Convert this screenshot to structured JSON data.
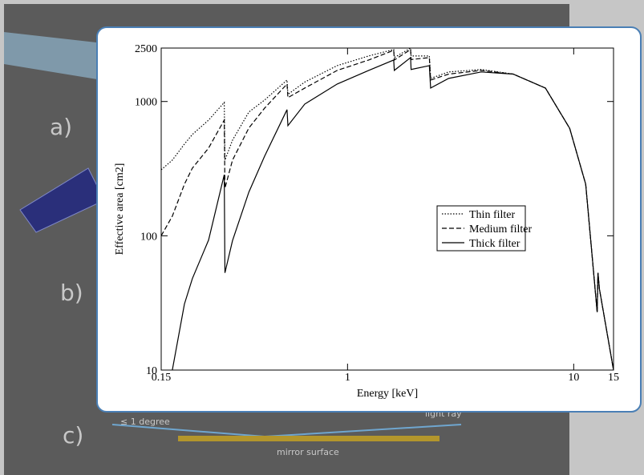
{
  "slide": {
    "panel_labels": [
      "a)",
      "b)",
      "c)"
    ],
    "angle_note": "≤ 1 degree",
    "ray_label": "light ray",
    "surface_label": "mirror surface"
  },
  "chart_data": {
    "type": "line",
    "x_label": "Energy [keV]",
    "y_label": "Effective area [cm2]",
    "xscale": "log",
    "yscale": "log",
    "xlim": [
      0.15,
      15
    ],
    "ylim": [
      10,
      2500
    ],
    "xticks": [
      0.15,
      1,
      10,
      15
    ],
    "yticks": [
      10,
      100,
      1000,
      2500
    ],
    "legend": "right",
    "x": [
      0.15,
      0.168,
      0.19,
      0.206,
      0.243,
      0.285,
      0.287,
      0.31,
      0.366,
      0.43,
      0.54,
      0.545,
      0.647,
      0.9,
      1.24,
      1.6,
      1.61,
      1.9,
      1.91,
      2.3,
      2.33,
      2.8,
      3.9,
      5.4,
      7.5,
      9.6,
      11.3,
      12.7,
      12.8,
      13,
      15
    ],
    "series": [
      {
        "name": "Thin filter",
        "color": "#000000",
        "style": "dotted",
        "values": [
          310,
          366,
          482,
          568,
          727,
          984,
          366,
          515,
          834,
          1026,
          1445,
          1130,
          1396,
          1850,
          2183,
          2437,
          2123,
          2500,
          2183,
          2183,
          1486,
          1660,
          1731,
          1600,
          1259,
          631,
          242,
          27,
          53,
          40,
          10
        ]
      },
      {
        "name": "Medium filter",
        "color": "#000000",
        "style": "dashed",
        "values": [
          100,
          140,
          242,
          319,
          450,
          727,
          226,
          366,
          634,
          893,
          1349,
          1069,
          1259,
          1704,
          2037,
          2404,
          2037,
          2437,
          2054,
          2123,
          1445,
          1600,
          1704,
          1600,
          1259,
          631,
          242,
          27,
          53,
          40,
          10
        ]
      },
      {
        "name": "Thick filter",
        "color": "#000000",
        "style": "solid",
        "values": [
          null,
          10,
          31,
          48,
          93,
          285,
          53,
          92,
          211,
          392,
          869,
          661,
          957,
          1349,
          1704,
          2037,
          1704,
          2123,
          1731,
          1850,
          1259,
          1486,
          1660,
          1600,
          1259,
          631,
          242,
          27,
          53,
          40,
          10
        ]
      }
    ]
  }
}
